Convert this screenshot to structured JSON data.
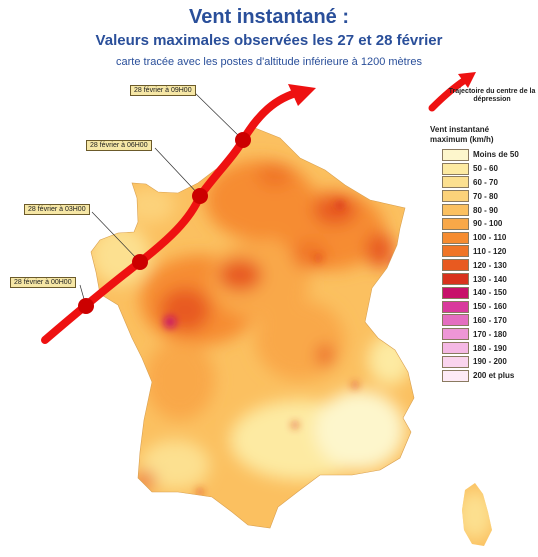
{
  "title": "Vent instantané :",
  "subtitle": "Valeurs maximales observées les 27 et 28 février",
  "note": "carte tracée avec les postes d'altitude inférieure à 1200 mètres",
  "trajectory_label": "Trajectoire du centre de la dépression",
  "legend_title": "Vent instantané maximum (km/h)",
  "legend": [
    {
      "label": "Moins de 50",
      "color": "#fdf6cc"
    },
    {
      "label": "50 - 60",
      "color": "#fdeaa2"
    },
    {
      "label": "60 - 70",
      "color": "#fce090"
    },
    {
      "label": "70 - 80",
      "color": "#fcd27a"
    },
    {
      "label": "80 - 90",
      "color": "#fbc060"
    },
    {
      "label": "90 - 100",
      "color": "#f9a848"
    },
    {
      "label": "100 - 110",
      "color": "#f68c30"
    },
    {
      "label": "110 - 120",
      "color": "#f07526"
    },
    {
      "label": "120 - 130",
      "color": "#e85a20"
    },
    {
      "label": "130 - 140",
      "color": "#d8321c"
    },
    {
      "label": "140 - 150",
      "color": "#c8106a"
    },
    {
      "label": "150 - 160",
      "color": "#d93a9c"
    },
    {
      "label": "160 - 170",
      "color": "#e46ec0"
    },
    {
      "label": "170 - 180",
      "color": "#ee96d6"
    },
    {
      "label": "180 - 190",
      "color": "#f5b8e4"
    },
    {
      "label": "190 - 200",
      "color": "#fad4ee"
    },
    {
      "label": "200 et plus",
      "color": "#fdeaf6"
    }
  ],
  "trajectory_points": [
    {
      "label": "28 février à 00H00"
    },
    {
      "label": "28 février à 03H00"
    },
    {
      "label": "28 février à 06H00"
    },
    {
      "label": "28 février à 09H00"
    }
  ],
  "colors": {
    "title": "#2a4f9a",
    "trajectory": "#ee1111"
  }
}
